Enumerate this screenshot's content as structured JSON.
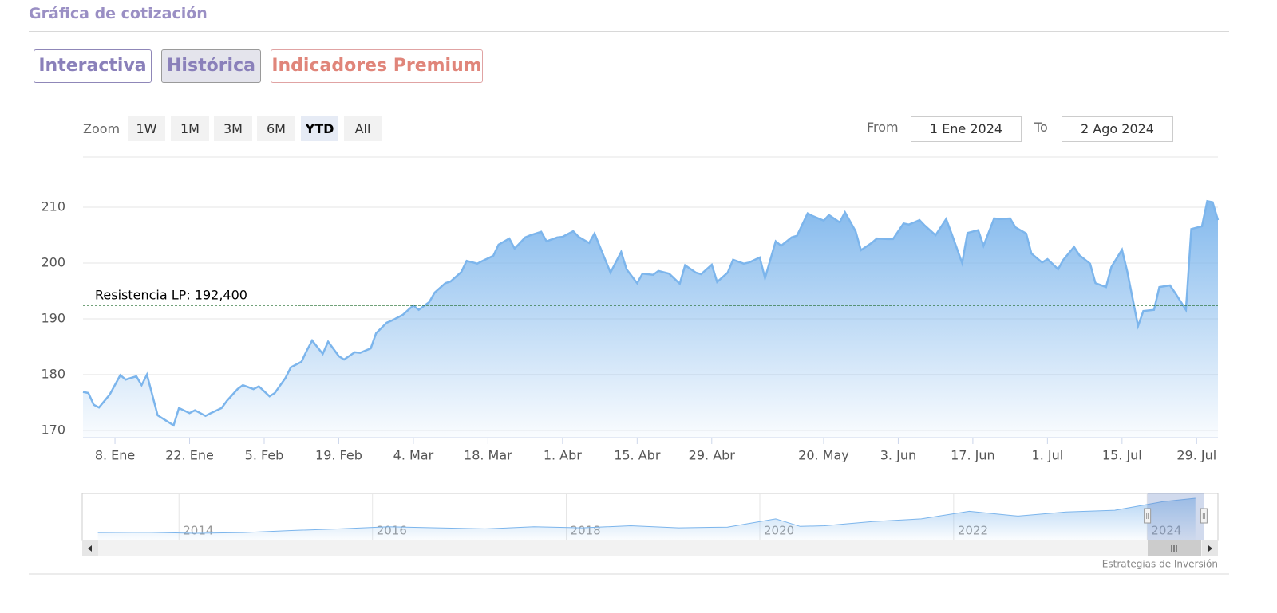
{
  "header": {
    "title": "Gráfica de cotización"
  },
  "tabs": {
    "items": [
      "Interactiva",
      "Histórica",
      "Indicadores Premium"
    ],
    "active": 1
  },
  "zoom": {
    "label": "Zoom",
    "buttons": [
      "1W",
      "1M",
      "3M",
      "6M",
      "YTD",
      "All"
    ],
    "active": 4
  },
  "range": {
    "from_label": "From",
    "from": "1 Ene 2024",
    "to_label": "To",
    "to": "2 Ago 2024"
  },
  "footer": {
    "credit": "Estrategias de Inversión"
  },
  "chart_data": [
    {
      "type": "area",
      "color": "#7cb5ec",
      "x": [
        "2024-01-02",
        "2024-01-03",
        "2024-01-04",
        "2024-01-05",
        "2024-01-07",
        "2024-01-09",
        "2024-01-10",
        "2024-01-12",
        "2024-01-13",
        "2024-01-14",
        "2024-01-16",
        "2024-01-17",
        "2024-01-19",
        "2024-01-20",
        "2024-01-22",
        "2024-01-23",
        "2024-01-25",
        "2024-01-26",
        "2024-01-28",
        "2024-01-29",
        "2024-01-31",
        "2024-02-01",
        "2024-02-03",
        "2024-02-04",
        "2024-02-06",
        "2024-02-07",
        "2024-02-09",
        "2024-02-10",
        "2024-02-12",
        "2024-02-13",
        "2024-02-14",
        "2024-02-16",
        "2024-02-17",
        "2024-02-19",
        "2024-02-20",
        "2024-02-22",
        "2024-02-23",
        "2024-02-25",
        "2024-02-26",
        "2024-02-28",
        "2024-02-29",
        "2024-03-02",
        "2024-03-04",
        "2024-03-05",
        "2024-03-07",
        "2024-03-08",
        "2024-03-10",
        "2024-03-11",
        "2024-03-13",
        "2024-03-14",
        "2024-03-16",
        "2024-03-17",
        "2024-03-19",
        "2024-03-20",
        "2024-03-22",
        "2024-03-23",
        "2024-03-25",
        "2024-03-26",
        "2024-03-28",
        "2024-03-29",
        "2024-03-31",
        "2024-04-01",
        "2024-04-03",
        "2024-04-04",
        "2024-04-06",
        "2024-04-07",
        "2024-04-09",
        "2024-04-10",
        "2024-04-12",
        "2024-04-13",
        "2024-04-15",
        "2024-04-16",
        "2024-04-18",
        "2024-04-19",
        "2024-04-21",
        "2024-04-23",
        "2024-04-24",
        "2024-04-26",
        "2024-04-27",
        "2024-04-29",
        "2024-04-30",
        "2024-05-02",
        "2024-05-03",
        "2024-05-05",
        "2024-05-06",
        "2024-05-08",
        "2024-05-09",
        "2024-05-11",
        "2024-05-12",
        "2024-05-14",
        "2024-05-15",
        "2024-05-17",
        "2024-05-18",
        "2024-05-20",
        "2024-05-21",
        "2024-05-23",
        "2024-05-24",
        "2024-05-26",
        "2024-05-27",
        "2024-05-29",
        "2024-05-30",
        "2024-06-01",
        "2024-06-02",
        "2024-06-04",
        "2024-06-05",
        "2024-06-07",
        "2024-06-08",
        "2024-06-10",
        "2024-06-12",
        "2024-06-13",
        "2024-06-15",
        "2024-06-16",
        "2024-06-18",
        "2024-06-19",
        "2024-06-21",
        "2024-06-22",
        "2024-06-24",
        "2024-06-25",
        "2024-06-27",
        "2024-06-28",
        "2024-06-30",
        "2024-07-01",
        "2024-07-03",
        "2024-07-04",
        "2024-07-06",
        "2024-07-07",
        "2024-07-09",
        "2024-07-10",
        "2024-07-12",
        "2024-07-13",
        "2024-07-15",
        "2024-07-16",
        "2024-07-18",
        "2024-07-19",
        "2024-07-21",
        "2024-07-22",
        "2024-07-24",
        "2024-07-25",
        "2024-07-27",
        "2024-07-28",
        "2024-07-30",
        "2024-07-31",
        "2024-08-01",
        "2024-08-02"
      ],
      "values": [
        176.9,
        176.7,
        174.6,
        174.1,
        176.4,
        179.9,
        179.1,
        179.7,
        178.1,
        180.0,
        172.7,
        172.1,
        170.9,
        174.0,
        173.1,
        173.6,
        172.6,
        173.1,
        174.0,
        175.3,
        177.4,
        178.1,
        177.4,
        177.9,
        176.1,
        176.7,
        179.4,
        181.3,
        182.3,
        184.3,
        186.1,
        183.7,
        185.9,
        183.3,
        182.7,
        184.0,
        183.9,
        184.7,
        187.4,
        189.3,
        189.7,
        190.7,
        192.4,
        191.6,
        193.0,
        194.7,
        196.4,
        196.7,
        198.4,
        200.4,
        199.9,
        200.4,
        201.3,
        203.3,
        204.4,
        202.6,
        204.6,
        205.0,
        205.6,
        203.9,
        204.6,
        204.7,
        205.7,
        204.7,
        203.6,
        205.3,
        200.6,
        198.3,
        202.0,
        198.9,
        196.4,
        198.1,
        197.9,
        198.6,
        198.1,
        196.3,
        199.6,
        198.3,
        198.0,
        199.7,
        196.6,
        198.3,
        200.6,
        199.9,
        200.1,
        201.0,
        197.3,
        203.9,
        203.1,
        204.6,
        204.9,
        208.9,
        208.4,
        207.6,
        208.6,
        207.3,
        209.1,
        205.7,
        202.3,
        203.6,
        204.4,
        204.3,
        204.3,
        207.1,
        206.9,
        207.7,
        206.7,
        205.0,
        207.9,
        205.3,
        200.0,
        205.4,
        205.9,
        203.1,
        208.0,
        207.9,
        208.0,
        206.4,
        205.3,
        201.7,
        200.1,
        200.7,
        198.9,
        200.6,
        202.9,
        201.4,
        199.9,
        196.4,
        195.7,
        199.3,
        202.4,
        198.4,
        188.7,
        191.4,
        191.6,
        195.7,
        196.0,
        194.6,
        191.6,
        206.1,
        206.6,
        211.1,
        210.9,
        207.7
      ],
      "xlim": [
        "2024-01-02",
        "2024-08-02"
      ],
      "ylim": [
        168.7,
        219
      ],
      "yticks": [
        170,
        180,
        190,
        200,
        210
      ],
      "xticks": [
        {
          "value": "2024-01-08",
          "label": "8. Ene"
        },
        {
          "value": "2024-01-22",
          "label": "22. Ene"
        },
        {
          "value": "2024-02-05",
          "label": "5. Feb"
        },
        {
          "value": "2024-02-19",
          "label": "19. Feb"
        },
        {
          "value": "2024-03-04",
          "label": "4. Mar"
        },
        {
          "value": "2024-03-18",
          "label": "18. Mar"
        },
        {
          "value": "2024-04-01",
          "label": "1. Abr"
        },
        {
          "value": "2024-04-15",
          "label": "15. Abr"
        },
        {
          "value": "2024-04-29",
          "label": "29. Abr"
        },
        {
          "value": "2024-05-20",
          "label": "20. May"
        },
        {
          "value": "2024-06-03",
          "label": "3. Jun"
        },
        {
          "value": "2024-06-17",
          "label": "17. Jun"
        },
        {
          "value": "2024-07-01",
          "label": "1. Jul"
        },
        {
          "value": "2024-07-15",
          "label": "15. Jul"
        },
        {
          "value": "2024-07-29",
          "label": "29. Jul"
        }
      ],
      "grid": true,
      "plot_lines": [
        {
          "value": 192.4,
          "label": "Resistencia LP: 192,400",
          "color": "#1f6b2a"
        }
      ]
    },
    {
      "type": "area",
      "color": "#7cb5ec",
      "x": [
        "2013-03",
        "2013-09",
        "2014-03",
        "2014-09",
        "2015-03",
        "2015-09",
        "2016-03",
        "2016-09",
        "2017-03",
        "2017-09",
        "2018-03",
        "2018-09",
        "2019-03",
        "2019-09",
        "2020-03",
        "2020-06",
        "2020-09",
        "2021-03",
        "2021-09",
        "2022-03",
        "2022-09",
        "2023-03",
        "2023-09",
        "2024-03",
        "2024-07"
      ],
      "values": [
        110,
        111,
        108,
        110,
        116,
        121,
        127,
        124,
        121,
        127,
        124,
        130,
        124,
        126,
        150,
        128,
        130,
        142,
        150,
        172,
        158,
        170,
        175,
        200,
        210
      ],
      "xlim": [
        "2013-01-01",
        "2024-09-24"
      ],
      "ylim": [
        87,
        224
      ],
      "xticks": [
        {
          "value": "2014-01-01",
          "label": "2014"
        },
        {
          "value": "2016-01-01",
          "label": "2016"
        },
        {
          "value": "2018-01-01",
          "label": "2018"
        },
        {
          "value": "2020-01-01",
          "label": "2020"
        },
        {
          "value": "2022-01-01",
          "label": "2022"
        },
        {
          "value": "2024-01-01",
          "label": "2024"
        }
      ],
      "grid": true
    }
  ]
}
